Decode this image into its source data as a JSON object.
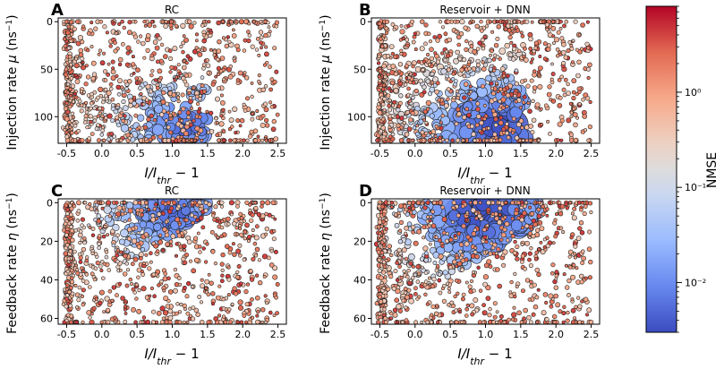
{
  "chart_data": {
    "type": "scatter",
    "description_note": "Bubble scatter: colour = NMSE (log scale), size = performance",
    "colorbar": {
      "label": "NMSE",
      "scale": "log",
      "range": [
        0.003,
        8
      ],
      "ticks": [
        {
          "value": 1,
          "label": "10⁰"
        },
        {
          "value": 0.1,
          "label": "10⁻¹"
        },
        {
          "value": 0.01,
          "label": "10⁻²"
        }
      ],
      "colormap": [
        "#3b4cc0",
        "#6788ee",
        "#9abbff",
        "#c9d7f0",
        "#edd1c2",
        "#f7a889",
        "#e26952",
        "#b40426"
      ]
    },
    "panels": [
      {
        "letter": "A",
        "title": "RC",
        "ylabel": "Injection rate μ (ns⁻¹)",
        "xlabel": "I/I_thr − 1",
        "xlim": [
          -0.62,
          2.62
        ],
        "ylim": [
          128,
          -4
        ],
        "xticks": [
          "-0.5",
          "0.0",
          "0.5",
          "1.0",
          "1.5",
          "2.0",
          "2.5"
        ],
        "yticks": [
          "0",
          "50",
          "100"
        ],
        "yvalues": [
          0,
          50,
          100
        ],
        "points_mode": "rc_mu"
      },
      {
        "letter": "B",
        "title": "Reservoir + DNN",
        "ylabel": "Injection rate μ (ns⁻¹)",
        "xlabel": "I/I_thr − 1",
        "xlim": [
          -0.62,
          2.62
        ],
        "ylim": [
          128,
          -4
        ],
        "xticks": [
          "-0.5",
          "0.0",
          "0.5",
          "1.0",
          "1.5",
          "2.0",
          "2.5"
        ],
        "yticks": [
          "0",
          "50",
          "100"
        ],
        "yvalues": [
          0,
          50,
          100
        ],
        "points_mode": "dnn_mu"
      },
      {
        "letter": "C",
        "title": "RC",
        "ylabel": "Feedback rate η (ns⁻¹)",
        "xlabel": "I/I_thr − 1",
        "xlim": [
          -0.62,
          2.62
        ],
        "ylim": [
          63,
          -2
        ],
        "xticks": [
          "-0.5",
          "0.0",
          "0.5",
          "1.0",
          "1.5",
          "2.0",
          "2.5"
        ],
        "yticks": [
          "0",
          "20",
          "40",
          "60"
        ],
        "yvalues": [
          0,
          20,
          40,
          60
        ],
        "points_mode": "rc_eta"
      },
      {
        "letter": "D",
        "title": "Reservoir + DNN",
        "ylabel": "Feedback rate η (ns⁻¹)",
        "xlabel": "I/I_thr − 1",
        "xlim": [
          -0.62,
          2.62
        ],
        "ylim": [
          63,
          -2
        ],
        "xticks": [
          "-0.5",
          "0.0",
          "0.5",
          "1.0",
          "1.5",
          "2.0",
          "2.5"
        ],
        "yticks": [
          "0",
          "20",
          "40",
          "60"
        ],
        "yvalues": [
          0,
          20,
          40,
          60
        ],
        "points_mode": "dnn_eta"
      }
    ]
  }
}
